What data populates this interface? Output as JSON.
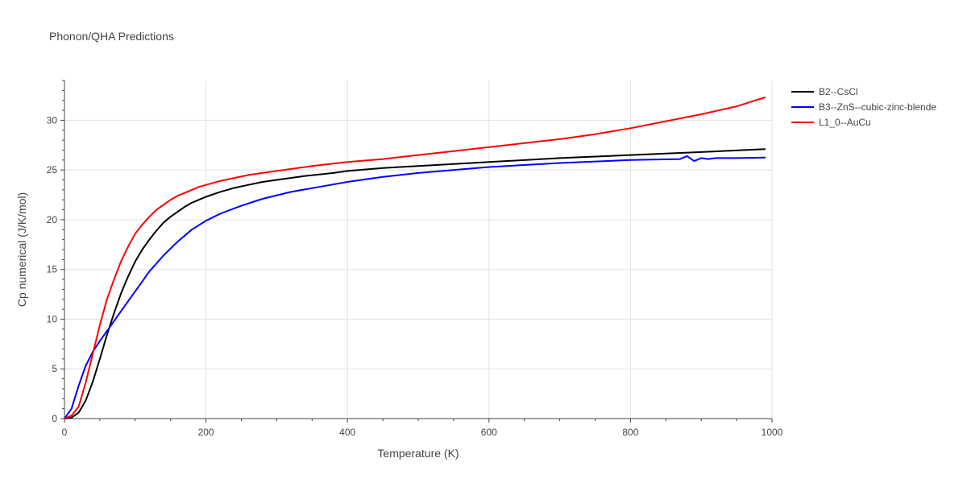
{
  "chart_data": {
    "type": "line",
    "title": "Phonon/QHA Predictions",
    "xlabel": "Temperature (K)",
    "ylabel": "Cp numerical (J/K/mol)",
    "xlim": [
      0,
      1000
    ],
    "ylim": [
      0,
      34
    ],
    "x_ticks": [
      0,
      200,
      400,
      600,
      800,
      1000
    ],
    "y_ticks": [
      0,
      5,
      10,
      15,
      20,
      25,
      30
    ],
    "grid": true,
    "legend_position": "top-right",
    "series": [
      {
        "name": "B2--CsCl",
        "color": "#000000",
        "x": [
          0,
          10,
          20,
          30,
          40,
          50,
          60,
          70,
          80,
          90,
          100,
          110,
          120,
          130,
          140,
          150,
          160,
          170,
          180,
          190,
          200,
          220,
          240,
          260,
          280,
          300,
          340,
          380,
          400,
          450,
          500,
          600,
          700,
          800,
          900,
          990
        ],
        "y": [
          0,
          0.1,
          0.6,
          1.8,
          3.7,
          6.0,
          8.4,
          10.6,
          12.6,
          14.3,
          15.8,
          17.0,
          18.0,
          18.9,
          19.7,
          20.3,
          20.8,
          21.3,
          21.7,
          22.0,
          22.3,
          22.8,
          23.2,
          23.5,
          23.8,
          24.0,
          24.4,
          24.7,
          24.9,
          25.2,
          25.4,
          25.8,
          26.2,
          26.5,
          26.8,
          27.1
        ]
      },
      {
        "name": "B3--ZnS--cubic-zinc-blende",
        "color": "#0000ff",
        "x": [
          0,
          10,
          20,
          30,
          40,
          50,
          60,
          70,
          80,
          90,
          100,
          120,
          140,
          160,
          180,
          200,
          220,
          250,
          280,
          320,
          360,
          400,
          450,
          500,
          600,
          700,
          800,
          870,
          880,
          890,
          900,
          910,
          920,
          950,
          990
        ],
        "y": [
          0,
          1.0,
          3.3,
          5.3,
          6.7,
          7.8,
          8.8,
          9.8,
          10.8,
          11.8,
          12.8,
          14.8,
          16.4,
          17.8,
          19.0,
          19.9,
          20.6,
          21.4,
          22.1,
          22.8,
          23.3,
          23.8,
          24.3,
          24.7,
          25.3,
          25.7,
          26.0,
          26.1,
          26.4,
          25.9,
          26.2,
          26.1,
          26.2,
          26.2,
          26.25
        ]
      },
      {
        "name": "L1_0--AuCu",
        "color": "#ff0000",
        "x": [
          0,
          10,
          20,
          30,
          40,
          50,
          60,
          70,
          80,
          90,
          100,
          110,
          120,
          130,
          140,
          150,
          160,
          170,
          180,
          190,
          200,
          220,
          240,
          260,
          280,
          300,
          350,
          400,
          450,
          500,
          550,
          600,
          650,
          700,
          750,
          800,
          850,
          900,
          950,
          990
        ],
        "y": [
          0,
          0.3,
          1.2,
          3.6,
          6.5,
          9.4,
          12.0,
          14.0,
          15.8,
          17.3,
          18.6,
          19.5,
          20.3,
          21.0,
          21.5,
          22.0,
          22.4,
          22.7,
          23.0,
          23.3,
          23.5,
          23.9,
          24.2,
          24.5,
          24.7,
          24.9,
          25.4,
          25.8,
          26.1,
          26.5,
          26.9,
          27.3,
          27.7,
          28.1,
          28.6,
          29.2,
          29.9,
          30.6,
          31.4,
          32.3
        ]
      }
    ]
  }
}
